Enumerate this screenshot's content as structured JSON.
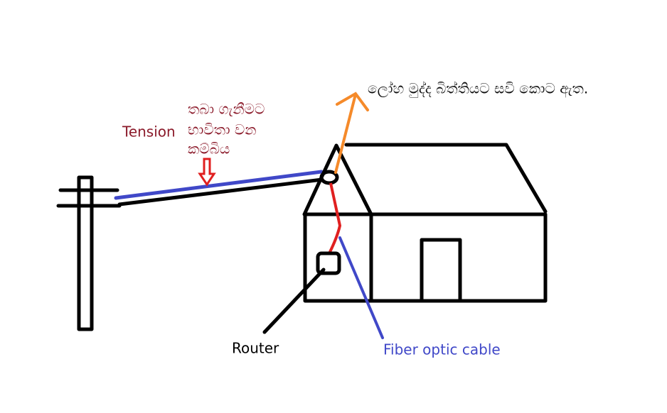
{
  "annotations": {
    "ring_note": "ලෝහ මුද්ද බිත්තියට සවි කොට ඇත.",
    "tension": "Tension",
    "wire_note": [
      "තබා ගැනීමට",
      "භාවිතා වන",
      "කම්බිය"
    ],
    "router": "Router",
    "fiber": "Fiber optic cable"
  }
}
